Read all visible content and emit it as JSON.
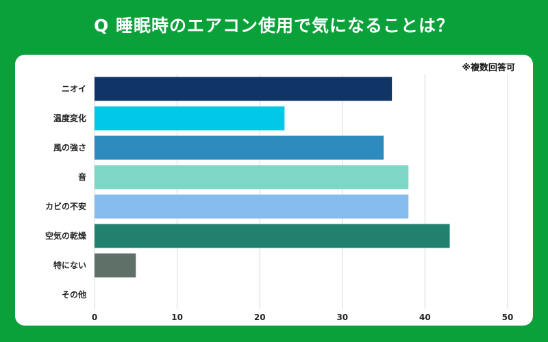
{
  "header": {
    "title": "Q 睡眠時のエアコン使用で気になることは？"
  },
  "chart": {
    "note": "※複数回答可"
  },
  "chart_data": {
    "type": "bar",
    "orientation": "horizontal",
    "title": "Q 睡眠時のエアコン使用で気になることは？",
    "categories": [
      "ニオイ",
      "温度変化",
      "風の強さ",
      "音",
      "カビの不安",
      "空気の乾燥",
      "特にない",
      "その他"
    ],
    "values": [
      36,
      23,
      35,
      38,
      38,
      43,
      5,
      0
    ],
    "colors": [
      "#0f3566",
      "#00c8e6",
      "#2e8bbd",
      "#7ed6c6",
      "#86bced",
      "#22806e",
      "#5e7068",
      "#cccccc"
    ],
    "xlim": [
      0,
      50
    ],
    "xticks": [
      0,
      10,
      20,
      30,
      40,
      50
    ],
    "grid": true,
    "xlabel": "",
    "ylabel": ""
  }
}
